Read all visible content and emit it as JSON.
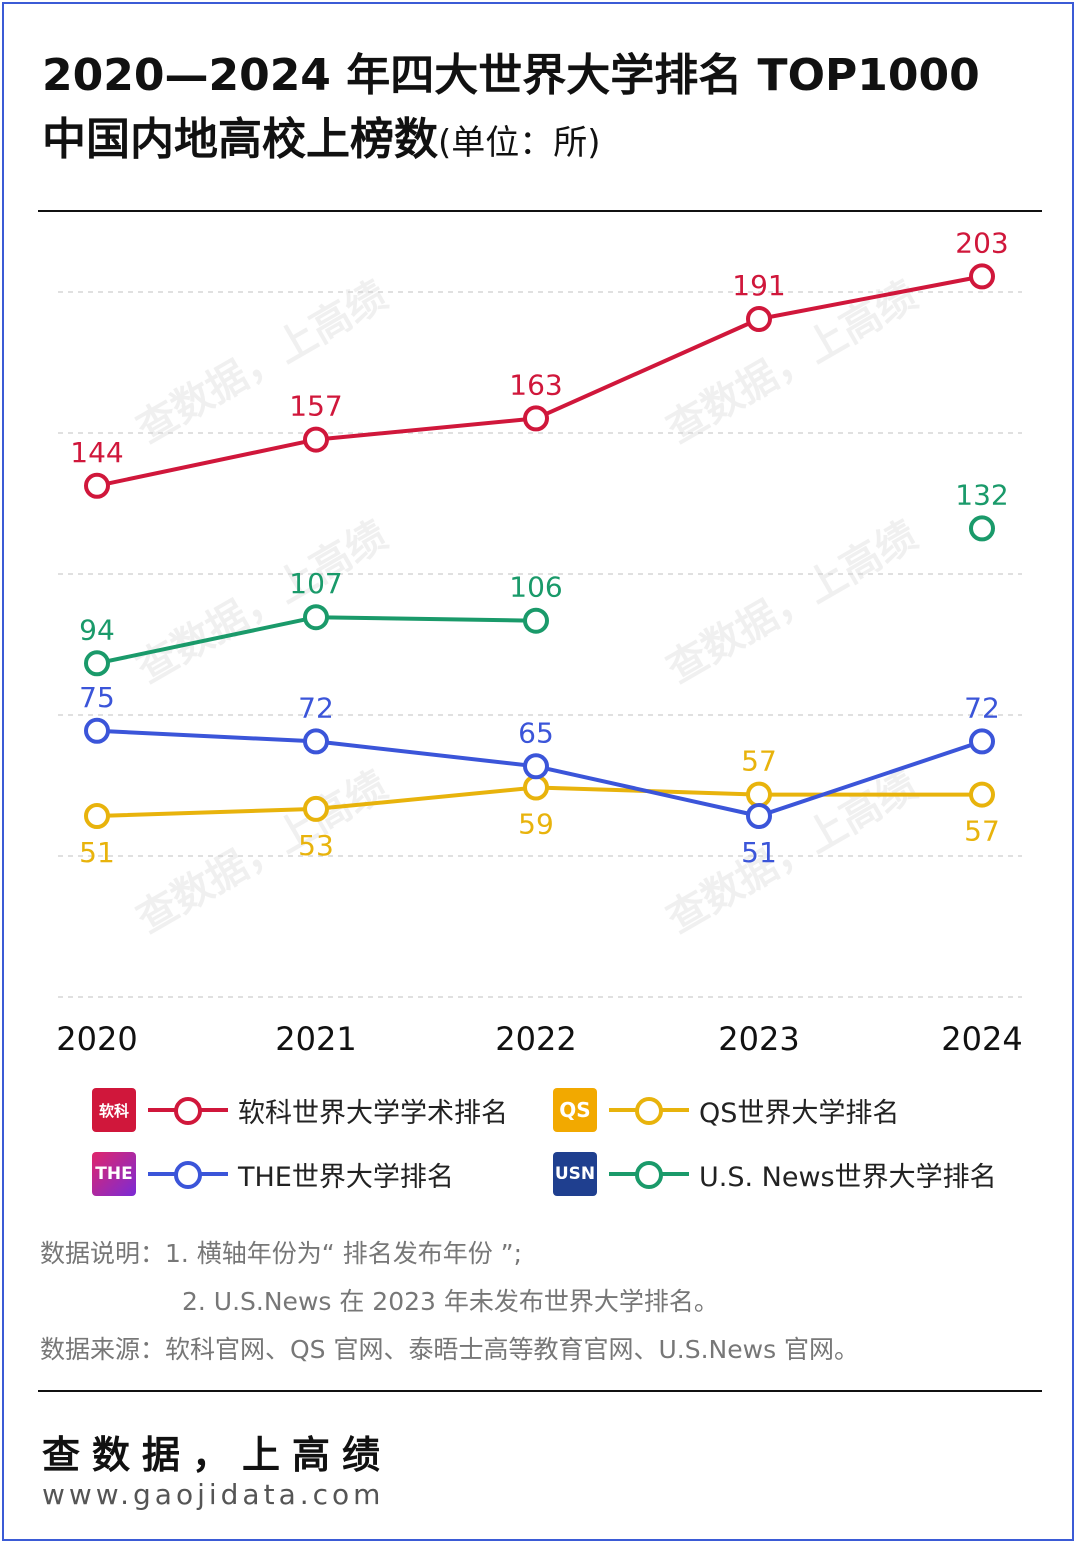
{
  "title": {
    "line1": "2020—2024 年四大世界大学排名 TOP1000",
    "line2": "中国内地高校上榜数",
    "unit": "(单位：所)"
  },
  "chart_data": {
    "type": "line",
    "x": [
      "2020",
      "2021",
      "2022",
      "2023",
      "2024"
    ],
    "ylim": [
      0,
      250
    ],
    "grid": true,
    "series": [
      {
        "name": "软科世界大学学术排名",
        "color": "#d0173b",
        "values": [
          144,
          157,
          163,
          191,
          203
        ]
      },
      {
        "name": "QS世界大学排名",
        "color": "#e8b30c",
        "values": [
          51,
          53,
          59,
          57,
          57
        ]
      },
      {
        "name": "THE世界大学排名",
        "color": "#3b55d9",
        "values": [
          75,
          72,
          65,
          51,
          72
        ]
      },
      {
        "name": "U.S. News世界大学排名",
        "color": "#1a9a6a",
        "values": [
          94,
          107,
          106,
          null,
          132
        ]
      }
    ]
  },
  "legend": {
    "logos": {
      "arwu": "软科",
      "qs": "QS",
      "the": "THE",
      "usn": "USN"
    }
  },
  "notes": {
    "line1": "数据说明：1. 横轴年份为“ 排名发布年份 ”;",
    "line2": "2. U.S.News 在 2023 年未发布世界大学排名。",
    "line3": "数据来源：软科官网、QS 官网、泰晤士高等教育官网、U.S.News 官网。"
  },
  "footer": {
    "tagline": "查数据，上高绩",
    "url": "www.gaojidata.com"
  },
  "watermark": {
    "text": "查数据，上高绩",
    "url": "www.gaojidata.com"
  }
}
